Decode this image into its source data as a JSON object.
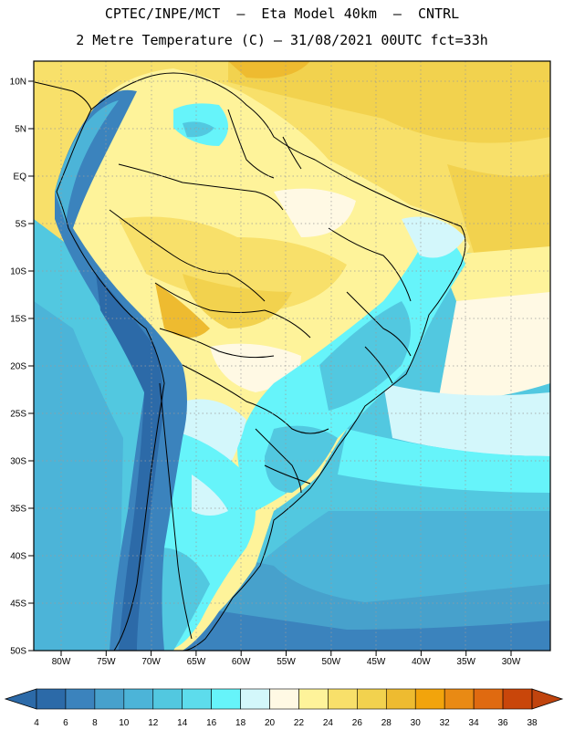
{
  "header": {
    "line1": "CPTEC/INPE/MCT  –  Eta Model 40km  –  CNTRL",
    "line2": "2 Metre Temperature (C) – 31/08/2021 00UTC fct=33h"
  },
  "map": {
    "region": "South America",
    "lat_labels": [
      "10N",
      "5N",
      "EQ",
      "5S",
      "10S",
      "15S",
      "20S",
      "25S",
      "30S",
      "35S",
      "40S",
      "45S",
      "50S"
    ],
    "lon_labels": [
      "80W",
      "75W",
      "70W",
      "65W",
      "60W",
      "55W",
      "50W",
      "45W",
      "40W",
      "35W",
      "30W"
    ],
    "grid": "dotted"
  },
  "colorbar": {
    "ticks": [
      "4",
      "6",
      "8",
      "10",
      "12",
      "14",
      "16",
      "18",
      "20",
      "22",
      "24",
      "26",
      "28",
      "30",
      "32",
      "34",
      "36",
      "38"
    ],
    "colors": [
      "#2c6aa8",
      "#2c6aa8",
      "#3b83bd",
      "#47a1cc",
      "#4cb4d8",
      "#52c8e0",
      "#5ddcec",
      "#66f4fa",
      "#d3f7fb",
      "#fff9e4",
      "#fef39a",
      "#f8e06a",
      "#f2d24e",
      "#eebb30",
      "#f2a40c",
      "#e98a14",
      "#e06a10",
      "#c9460a",
      "#c0440e"
    ]
  }
}
